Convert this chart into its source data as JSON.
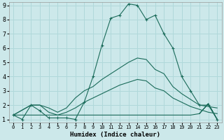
{
  "xlabel": "Humidex (Indice chaleur)",
  "bg_color": "#cce8ea",
  "grid_color": "#b0d8da",
  "line_color": "#1a6b5a",
  "xlim": [
    -0.5,
    23.5
  ],
  "ylim": [
    0.8,
    9.2
  ],
  "xticks": [
    0,
    1,
    2,
    3,
    4,
    5,
    6,
    7,
    8,
    9,
    10,
    11,
    12,
    13,
    14,
    15,
    16,
    17,
    18,
    19,
    20,
    21,
    22,
    23
  ],
  "yticks": [
    1,
    2,
    3,
    4,
    5,
    6,
    7,
    8,
    9
  ],
  "series0_x": [
    0,
    1,
    2,
    3,
    4,
    5,
    6,
    7,
    8,
    9,
    10,
    11,
    12,
    13,
    14,
    15,
    16,
    17,
    18,
    19,
    20,
    21,
    22,
    23
  ],
  "series0_y": [
    1.3,
    1.0,
    2.0,
    1.6,
    1.1,
    1.1,
    1.1,
    1.0,
    2.2,
    4.0,
    6.2,
    8.1,
    8.3,
    9.1,
    9.0,
    8.0,
    8.3,
    7.0,
    6.0,
    4.0,
    3.0,
    2.0,
    2.0,
    1.0
  ],
  "series1_x": [
    0,
    2,
    3,
    4,
    5,
    6,
    7,
    8,
    9,
    10,
    11,
    12,
    13,
    14,
    15,
    16,
    17,
    18,
    19,
    20,
    21,
    22,
    23
  ],
  "series1_y": [
    1.3,
    2.0,
    2.0,
    1.8,
    1.5,
    1.8,
    2.5,
    3.0,
    3.3,
    3.8,
    4.2,
    4.6,
    5.0,
    5.3,
    5.2,
    4.5,
    4.2,
    3.3,
    2.8,
    2.4,
    2.0,
    1.9,
    1.8
  ],
  "series2_x": [
    0,
    2,
    3,
    4,
    5,
    6,
    7,
    8,
    9,
    10,
    11,
    12,
    13,
    14,
    15,
    16,
    17,
    18,
    19,
    20,
    21,
    22,
    23
  ],
  "series2_y": [
    1.3,
    2.0,
    2.0,
    1.5,
    1.3,
    1.5,
    1.8,
    2.2,
    2.5,
    2.8,
    3.1,
    3.4,
    3.6,
    3.8,
    3.7,
    3.2,
    3.0,
    2.5,
    2.2,
    1.9,
    1.7,
    1.5,
    1.4
  ],
  "series3_x": [
    0,
    1,
    2,
    3,
    4,
    5,
    6,
    7,
    8,
    9,
    10,
    11,
    12,
    13,
    14,
    15,
    16,
    17,
    18,
    19,
    20,
    21
  ],
  "series3_y": [
    1.3,
    1.3,
    1.3,
    1.3,
    1.3,
    1.3,
    1.3,
    1.3,
    1.3,
    1.3,
    1.3,
    1.3,
    1.3,
    1.3,
    1.3,
    1.3,
    1.3,
    1.3,
    1.3,
    1.3,
    1.3,
    1.4
  ],
  "triangle_x": [
    21,
    22,
    23,
    22,
    21
  ],
  "triangle_y": [
    1.4,
    2.1,
    1.0,
    2.1,
    1.4
  ]
}
